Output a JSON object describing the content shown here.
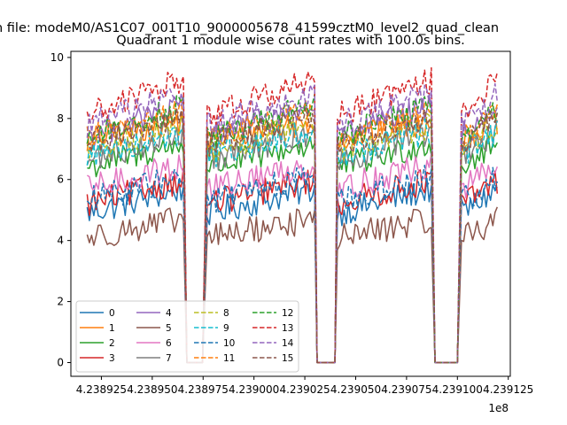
{
  "chart_data": {
    "type": "line",
    "suptitle": "n file: modeM0/AS1C07_001T10_9000005678_41599cztM0_level2_quad_clean",
    "title": "Quadrant 1 module wise count rates with 100.0s bins.",
    "xlabel": "",
    "ylabel": "",
    "x_offset_label": "1e8",
    "x_scale": 100000000,
    "xlim": [
      4.23891,
      4.239126
    ],
    "ylim": [
      -0.45,
      10.2
    ],
    "x_ticks": [
      4.238925,
      4.23895,
      4.238975,
      4.239,
      4.239025,
      4.23905,
      4.239075,
      4.2391,
      4.239125
    ],
    "x_tick_labels": [
      "4.238925",
      "4.238950",
      "4.238975",
      "4.239000",
      "4.239025",
      "4.239050",
      "4.239075",
      "4.239100",
      "4.239125"
    ],
    "y_ticks": [
      0,
      2,
      4,
      6,
      8,
      10
    ],
    "y_tick_labels": [
      "0",
      "2",
      "4",
      "6",
      "8",
      "10"
    ],
    "grid": false,
    "legend_placement": "lower-left",
    "segments": [
      {
        "x_start": 4.238918,
        "x_end": 4.238966,
        "on": true
      },
      {
        "x_start": 4.238967,
        "x_end": 4.238975,
        "on": false
      },
      {
        "x_start": 4.238977,
        "x_end": 4.23903,
        "on": true
      },
      {
        "x_start": 4.239031,
        "x_end": 4.23904,
        "on": false
      },
      {
        "x_start": 4.239041,
        "x_end": 4.239088,
        "on": true
      },
      {
        "x_start": 4.239089,
        "x_end": 4.239101,
        "on": false
      },
      {
        "x_start": 4.239102,
        "x_end": 4.23912,
        "on": true
      }
    ],
    "series": [
      {
        "name": "0",
        "color": "#1f77b4",
        "dash": "solid",
        "level": 5.3,
        "trend": 0.4
      },
      {
        "name": "1",
        "color": "#ff7f0e",
        "dash": "solid",
        "level": 7.6,
        "trend": 0.3
      },
      {
        "name": "2",
        "color": "#2ca02c",
        "dash": "solid",
        "level": 6.8,
        "trend": 0.4
      },
      {
        "name": "3",
        "color": "#d62728",
        "dash": "solid",
        "level": 5.6,
        "trend": 0.4
      },
      {
        "name": "4",
        "color": "#9467bd",
        "dash": "solid",
        "level": 7.9,
        "trend": 0.5
      },
      {
        "name": "5",
        "color": "#8c564b",
        "dash": "solid",
        "level": 4.4,
        "trend": 0.3
      },
      {
        "name": "6",
        "color": "#e377c2",
        "dash": "solid",
        "level": 6.1,
        "trend": 0.4
      },
      {
        "name": "7",
        "color": "#7f7f7f",
        "dash": "solid",
        "level": 7.1,
        "trend": 0.5
      },
      {
        "name": "8",
        "color": "#bcbd22",
        "dash": "dashed",
        "level": 7.4,
        "trend": 0.4
      },
      {
        "name": "9",
        "color": "#17becf",
        "dash": "dashed",
        "level": 7.2,
        "trend": 0.4
      },
      {
        "name": "10",
        "color": "#1f77b4",
        "dash": "dashed",
        "level": 5.7,
        "trend": 0.4
      },
      {
        "name": "11",
        "color": "#ff7f0e",
        "dash": "dashed",
        "level": 7.8,
        "trend": 0.4
      },
      {
        "name": "12",
        "color": "#2ca02c",
        "dash": "dashed",
        "level": 7.9,
        "trend": 0.5
      },
      {
        "name": "13",
        "color": "#d62728",
        "dash": "dashed",
        "level": 8.7,
        "trend": 0.6
      },
      {
        "name": "14",
        "color": "#9467bd",
        "dash": "dashed",
        "level": 8.3,
        "trend": 0.5
      },
      {
        "name": "15",
        "color": "#8c564b",
        "dash": "dashed",
        "level": 7.6,
        "trend": 0.4
      }
    ]
  }
}
